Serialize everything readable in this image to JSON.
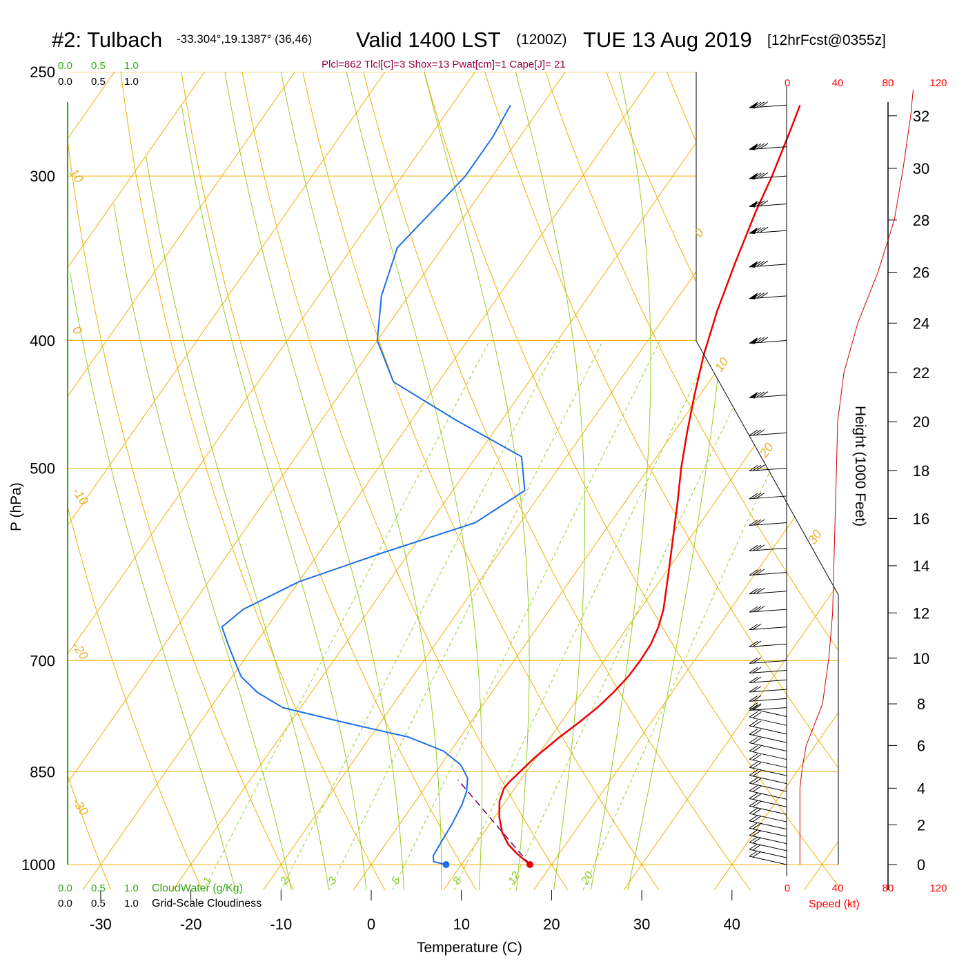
{
  "header": {
    "station": "#2: Tulbach",
    "coords": "-33.304°,19.1387° (36,46)",
    "valid": "Valid 1400 LST",
    "zulu": "(1200Z)",
    "date": "TUE 13 Aug 2019",
    "forecast": "[12hrFcst@0355z]",
    "stats": "Plcl=862 Tlcl[C]=3 Shox=13 Pwat[cm]=1 Cape[J]= 21"
  },
  "scales": {
    "cloud_top_green": [
      "0.0",
      "0.5",
      "1.0"
    ],
    "cloud_top_black": [
      "0.0",
      "0.5",
      "1.0"
    ],
    "cloud_bottom_green": [
      "0.0",
      "0.5",
      "1.0"
    ],
    "cloud_bottom_black": [
      "0.0",
      "0.5",
      "1.0"
    ],
    "cloudwater_label": "CloudWater (g/Kg)",
    "cloudiness_label": "Grid-Scale Cloudiness"
  },
  "axes": {
    "y_label": "P (hPa)",
    "x_label": "Temperature (C)",
    "height_label": "Height (1000 Feet)",
    "speed_label": "Speed (kt)"
  },
  "colors": {
    "temperature": "#ee0000",
    "dewpoint": "#1a6fe6",
    "isotherm": "#f0b000",
    "dry_adiabat": "#f0b000",
    "moist_adiabat": "#99cc22",
    "mixing_ratio": "#99cc22",
    "parcel": "#660066",
    "speed": "#cc0000"
  },
  "chart_data": {
    "type": "skew-t",
    "pressure_ticks": [
      1000,
      850,
      700,
      500,
      400,
      300,
      250
    ],
    "temperature_ticks": [
      -30,
      -20,
      -10,
      0,
      10,
      20,
      30,
      40
    ],
    "isotherm_labels": [
      "10",
      "0",
      "-10",
      "-20",
      "-30",
      "0",
      "10",
      "20",
      "30"
    ],
    "mixing_ratio_labels": [
      "1",
      "2",
      "3",
      "5",
      "8",
      "12",
      "20"
    ],
    "mixing_ratio_values": [
      1,
      2,
      3,
      5,
      8,
      12,
      20
    ],
    "height_ticks": [
      0,
      2,
      4,
      6,
      8,
      10,
      12,
      14,
      16,
      18,
      20,
      22,
      24,
      26,
      28,
      30,
      32
    ],
    "height_pressure": [
      1000,
      933,
      875,
      812,
      755,
      697,
      644,
      593,
      546,
      502,
      461,
      423,
      388,
      355,
      324,
      296,
      270
    ],
    "speed_ticks": [
      "0",
      "40",
      "80",
      "120"
    ],
    "temperature_profile": {
      "p": [
        1000,
        990,
        980,
        965,
        945,
        920,
        895,
        875,
        865,
        850,
        830,
        800,
        780,
        760,
        740,
        720,
        700,
        680,
        660,
        640,
        600,
        560,
        530,
        500,
        470,
        440,
        410,
        380,
        350,
        320,
        300,
        280,
        265
      ],
      "t": [
        17.6,
        16.4,
        15.2,
        13.6,
        12.0,
        10.5,
        9.3,
        8.8,
        8.9,
        9.3,
        9.8,
        11.0,
        12.0,
        12.9,
        13.5,
        13.9,
        14.0,
        13.9,
        13.4,
        12.6,
        10.3,
        7.8,
        5.8,
        3.6,
        1.5,
        -0.6,
        -2.7,
        -4.6,
        -6.3,
        -8.0,
        -9.0,
        -10.3,
        -11.4
      ]
    },
    "dewpoint_profile": {
      "p": [
        1000,
        995,
        985,
        960,
        930,
        900,
        880,
        860,
        840,
        820,
        800,
        780,
        760,
        740,
        720,
        700,
        680,
        660,
        640,
        610,
        580,
        550,
        520,
        490,
        460,
        430,
        400,
        370,
        340,
        320,
        300,
        280,
        265
      ],
      "td": [
        8.3,
        6.7,
        6.2,
        6.0,
        5.8,
        5.4,
        4.9,
        4.0,
        2.2,
        -0.8,
        -5.8,
        -14.0,
        -22.0,
        -26.0,
        -29.0,
        -31.0,
        -33.0,
        -35.0,
        -34.0,
        -30.0,
        -23.0,
        -15.0,
        -12.0,
        -15.0,
        -25.0,
        -35.0,
        -40.0,
        -43.0,
        -45.0,
        -44.0,
        -43.0,
        -43.0,
        -43.5
      ]
    },
    "surface_points": {
      "temperature": 17.6,
      "dewpoint": 8.3
    },
    "parcel_path": {
      "p": [
        1000,
        862
      ],
      "t": [
        17.6,
        3.0
      ]
    },
    "wind_speed_profile": {
      "height_kft": [
        0,
        1,
        2,
        3,
        4,
        5,
        6,
        8,
        10,
        12,
        14,
        16,
        18,
        20,
        22,
        24,
        26,
        28,
        30,
        32,
        33
      ],
      "speed_kt": [
        10,
        10,
        10,
        10,
        10,
        12,
        15,
        28,
        33,
        36,
        37,
        38,
        39,
        40,
        45,
        56,
        72,
        85,
        92,
        98,
        100
      ]
    },
    "wind_barbs_note": "barbs plotted from surface to ~265 hPa"
  }
}
